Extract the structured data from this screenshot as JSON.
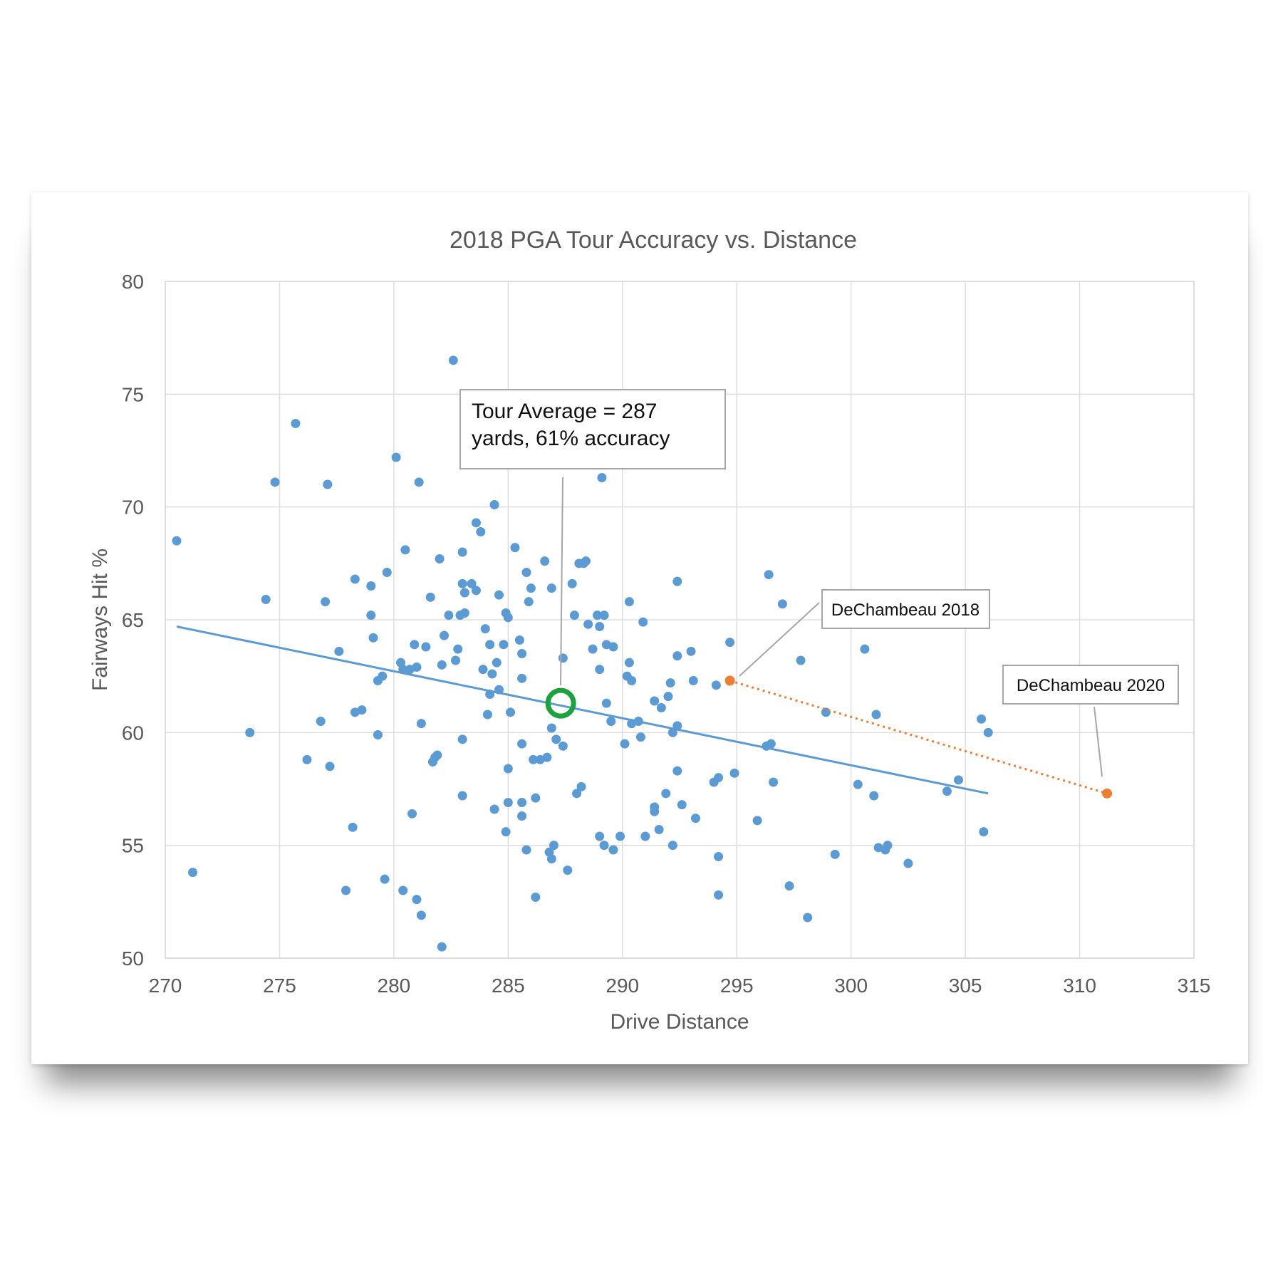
{
  "chart_data": {
    "type": "scatter",
    "title": "2018 PGA Tour Accuracy vs. Distance",
    "xlabel": "Drive Distance",
    "ylabel": "Fairways Hit %",
    "xlim": [
      270,
      315
    ],
    "ylim": [
      50,
      80
    ],
    "x_ticks": [
      "270",
      "275",
      "280",
      "285",
      "290",
      "295",
      "300",
      "305",
      "310",
      "315"
    ],
    "y_ticks": [
      "50",
      "55",
      "60",
      "65",
      "70",
      "75",
      "80"
    ],
    "grid": true,
    "legend": "none",
    "colors": {
      "points": "#5b9bd5",
      "trend": "#5b9bd5",
      "highlight": "#ed7d31",
      "average": "#1aa33a"
    },
    "series": [
      {
        "kind": "scatter",
        "points": [
          [
            270.5,
            68.5
          ],
          [
            271.2,
            53.8
          ],
          [
            273.7,
            60.0
          ],
          [
            274.4,
            65.9
          ],
          [
            274.8,
            71.1
          ],
          [
            275.7,
            73.7
          ],
          [
            276.2,
            58.8
          ],
          [
            276.8,
            60.5
          ],
          [
            277.0,
            65.8
          ],
          [
            277.1,
            71.0
          ],
          [
            277.2,
            58.5
          ],
          [
            277.6,
            63.6
          ],
          [
            277.9,
            53.0
          ],
          [
            278.2,
            55.8
          ],
          [
            278.3,
            66.8
          ],
          [
            278.3,
            60.9
          ],
          [
            278.6,
            61.0
          ],
          [
            279.0,
            65.2
          ],
          [
            279.0,
            66.5
          ],
          [
            279.1,
            64.2
          ],
          [
            279.3,
            62.3
          ],
          [
            279.3,
            59.9
          ],
          [
            279.5,
            62.5
          ],
          [
            279.6,
            53.5
          ],
          [
            279.7,
            67.1
          ],
          [
            280.1,
            72.2
          ],
          [
            280.3,
            63.1
          ],
          [
            280.4,
            62.8
          ],
          [
            280.4,
            53.0
          ],
          [
            280.5,
            68.1
          ],
          [
            280.7,
            62.8
          ],
          [
            280.8,
            56.4
          ],
          [
            280.9,
            63.9
          ],
          [
            281.0,
            62.9
          ],
          [
            281.0,
            52.6
          ],
          [
            281.1,
            71.1
          ],
          [
            281.2,
            51.9
          ],
          [
            281.2,
            60.4
          ],
          [
            281.4,
            63.8
          ],
          [
            281.6,
            66.0
          ],
          [
            281.7,
            58.7
          ],
          [
            281.8,
            58.9
          ],
          [
            281.9,
            59.0
          ],
          [
            282.0,
            67.7
          ],
          [
            282.1,
            63.0
          ],
          [
            282.1,
            50.5
          ],
          [
            282.2,
            64.3
          ],
          [
            282.4,
            65.2
          ],
          [
            282.6,
            76.5
          ],
          [
            282.7,
            63.2
          ],
          [
            282.8,
            63.7
          ],
          [
            282.9,
            65.2
          ],
          [
            283.0,
            68.0
          ],
          [
            283.0,
            66.6
          ],
          [
            283.0,
            59.7
          ],
          [
            283.0,
            57.2
          ],
          [
            283.1,
            65.3
          ],
          [
            283.1,
            66.2
          ],
          [
            283.4,
            66.6
          ],
          [
            283.6,
            66.3
          ],
          [
            283.6,
            69.3
          ],
          [
            283.8,
            68.9
          ],
          [
            283.9,
            62.8
          ],
          [
            284.0,
            64.6
          ],
          [
            284.1,
            60.8
          ],
          [
            284.2,
            61.7
          ],
          [
            284.2,
            63.9
          ],
          [
            284.3,
            62.6
          ],
          [
            284.4,
            70.1
          ],
          [
            284.4,
            56.6
          ],
          [
            284.5,
            63.1
          ],
          [
            284.6,
            61.9
          ],
          [
            284.6,
            66.1
          ],
          [
            284.8,
            63.9
          ],
          [
            284.9,
            55.6
          ],
          [
            284.9,
            65.3
          ],
          [
            285.0,
            65.1
          ],
          [
            285.0,
            58.4
          ],
          [
            285.0,
            56.9
          ],
          [
            285.1,
            60.9
          ],
          [
            285.3,
            68.2
          ],
          [
            285.5,
            64.1
          ],
          [
            285.6,
            63.5
          ],
          [
            285.6,
            62.4
          ],
          [
            285.6,
            59.5
          ],
          [
            285.6,
            56.9
          ],
          [
            285.6,
            56.3
          ],
          [
            285.8,
            67.1
          ],
          [
            285.8,
            54.8
          ],
          [
            285.9,
            65.8
          ],
          [
            286.0,
            66.4
          ],
          [
            286.1,
            58.8
          ],
          [
            286.2,
            57.1
          ],
          [
            286.2,
            52.7
          ],
          [
            286.4,
            58.8
          ],
          [
            286.6,
            67.6
          ],
          [
            286.7,
            58.9
          ],
          [
            286.8,
            54.7
          ],
          [
            286.9,
            54.4
          ],
          [
            286.9,
            60.2
          ],
          [
            286.9,
            66.4
          ],
          [
            287.0,
            55.0
          ],
          [
            287.1,
            59.7
          ],
          [
            287.4,
            59.4
          ],
          [
            287.4,
            63.3
          ],
          [
            287.6,
            53.9
          ],
          [
            287.8,
            66.6
          ],
          [
            287.9,
            65.2
          ],
          [
            288.0,
            57.3
          ],
          [
            288.1,
            67.5
          ],
          [
            288.2,
            57.6
          ],
          [
            288.3,
            67.5
          ],
          [
            288.4,
            67.6
          ],
          [
            288.5,
            64.8
          ],
          [
            288.7,
            63.7
          ],
          [
            288.9,
            65.2
          ],
          [
            289.0,
            64.7
          ],
          [
            289.0,
            62.8
          ],
          [
            289.0,
            55.4
          ],
          [
            289.1,
            71.3
          ],
          [
            289.2,
            55.0
          ],
          [
            289.2,
            65.2
          ],
          [
            289.3,
            61.3
          ],
          [
            289.3,
            63.9
          ],
          [
            289.5,
            60.5
          ],
          [
            289.6,
            54.8
          ],
          [
            289.6,
            63.8
          ],
          [
            289.9,
            55.4
          ],
          [
            290.1,
            59.5
          ],
          [
            290.2,
            62.5
          ],
          [
            290.3,
            65.8
          ],
          [
            290.3,
            63.1
          ],
          [
            290.4,
            62.3
          ],
          [
            290.4,
            60.4
          ],
          [
            290.7,
            60.5
          ],
          [
            290.8,
            59.8
          ],
          [
            290.9,
            64.9
          ],
          [
            291.0,
            55.4
          ],
          [
            291.4,
            56.5
          ],
          [
            291.4,
            56.7
          ],
          [
            291.4,
            61.4
          ],
          [
            291.6,
            55.7
          ],
          [
            291.7,
            61.1
          ],
          [
            291.9,
            57.3
          ],
          [
            292.0,
            61.6
          ],
          [
            292.1,
            62.2
          ],
          [
            292.2,
            55.0
          ],
          [
            292.2,
            60.0
          ],
          [
            292.4,
            66.7
          ],
          [
            292.4,
            58.3
          ],
          [
            292.4,
            60.3
          ],
          [
            292.4,
            63.4
          ],
          [
            292.6,
            56.8
          ],
          [
            293.0,
            63.6
          ],
          [
            293.1,
            62.3
          ],
          [
            293.2,
            56.2
          ],
          [
            294.0,
            57.8
          ],
          [
            294.1,
            62.1
          ],
          [
            294.2,
            58.0
          ],
          [
            294.2,
            54.5
          ],
          [
            294.2,
            52.8
          ],
          [
            294.7,
            64.0
          ],
          [
            294.9,
            58.2
          ],
          [
            295.9,
            56.1
          ],
          [
            296.3,
            59.4
          ],
          [
            296.4,
            67.0
          ],
          [
            296.5,
            59.5
          ],
          [
            296.6,
            57.8
          ],
          [
            297.0,
            65.7
          ],
          [
            297.3,
            53.2
          ],
          [
            297.8,
            63.2
          ],
          [
            298.1,
            51.8
          ],
          [
            298.9,
            60.9
          ],
          [
            299.3,
            54.6
          ],
          [
            300.3,
            57.7
          ],
          [
            300.6,
            63.7
          ],
          [
            301.0,
            57.2
          ],
          [
            301.1,
            60.8
          ],
          [
            301.2,
            54.9
          ],
          [
            301.5,
            54.8
          ],
          [
            301.6,
            55.0
          ],
          [
            302.5,
            54.2
          ],
          [
            304.2,
            57.4
          ],
          [
            304.7,
            57.9
          ],
          [
            305.7,
            60.6
          ],
          [
            305.8,
            55.6
          ],
          [
            306.0,
            60.0
          ]
        ]
      },
      {
        "kind": "trendline",
        "x": [
          270.5,
          306.0
        ],
        "y": [
          64.7,
          57.3
        ]
      },
      {
        "kind": "highlight",
        "x": [
          294.7,
          311.2
        ],
        "y": [
          62.3,
          57.3
        ]
      },
      {
        "kind": "average",
        "x": [
          287.3
        ],
        "y": [
          61.3
        ]
      }
    ],
    "annotations": [
      {
        "lines": [
          "Tour Average = 287",
          "yards, 61% accuracy"
        ]
      },
      {
        "lines": [
          "DeChambeau 2018"
        ]
      },
      {
        "lines": [
          "DeChambeau 2020"
        ]
      }
    ]
  }
}
